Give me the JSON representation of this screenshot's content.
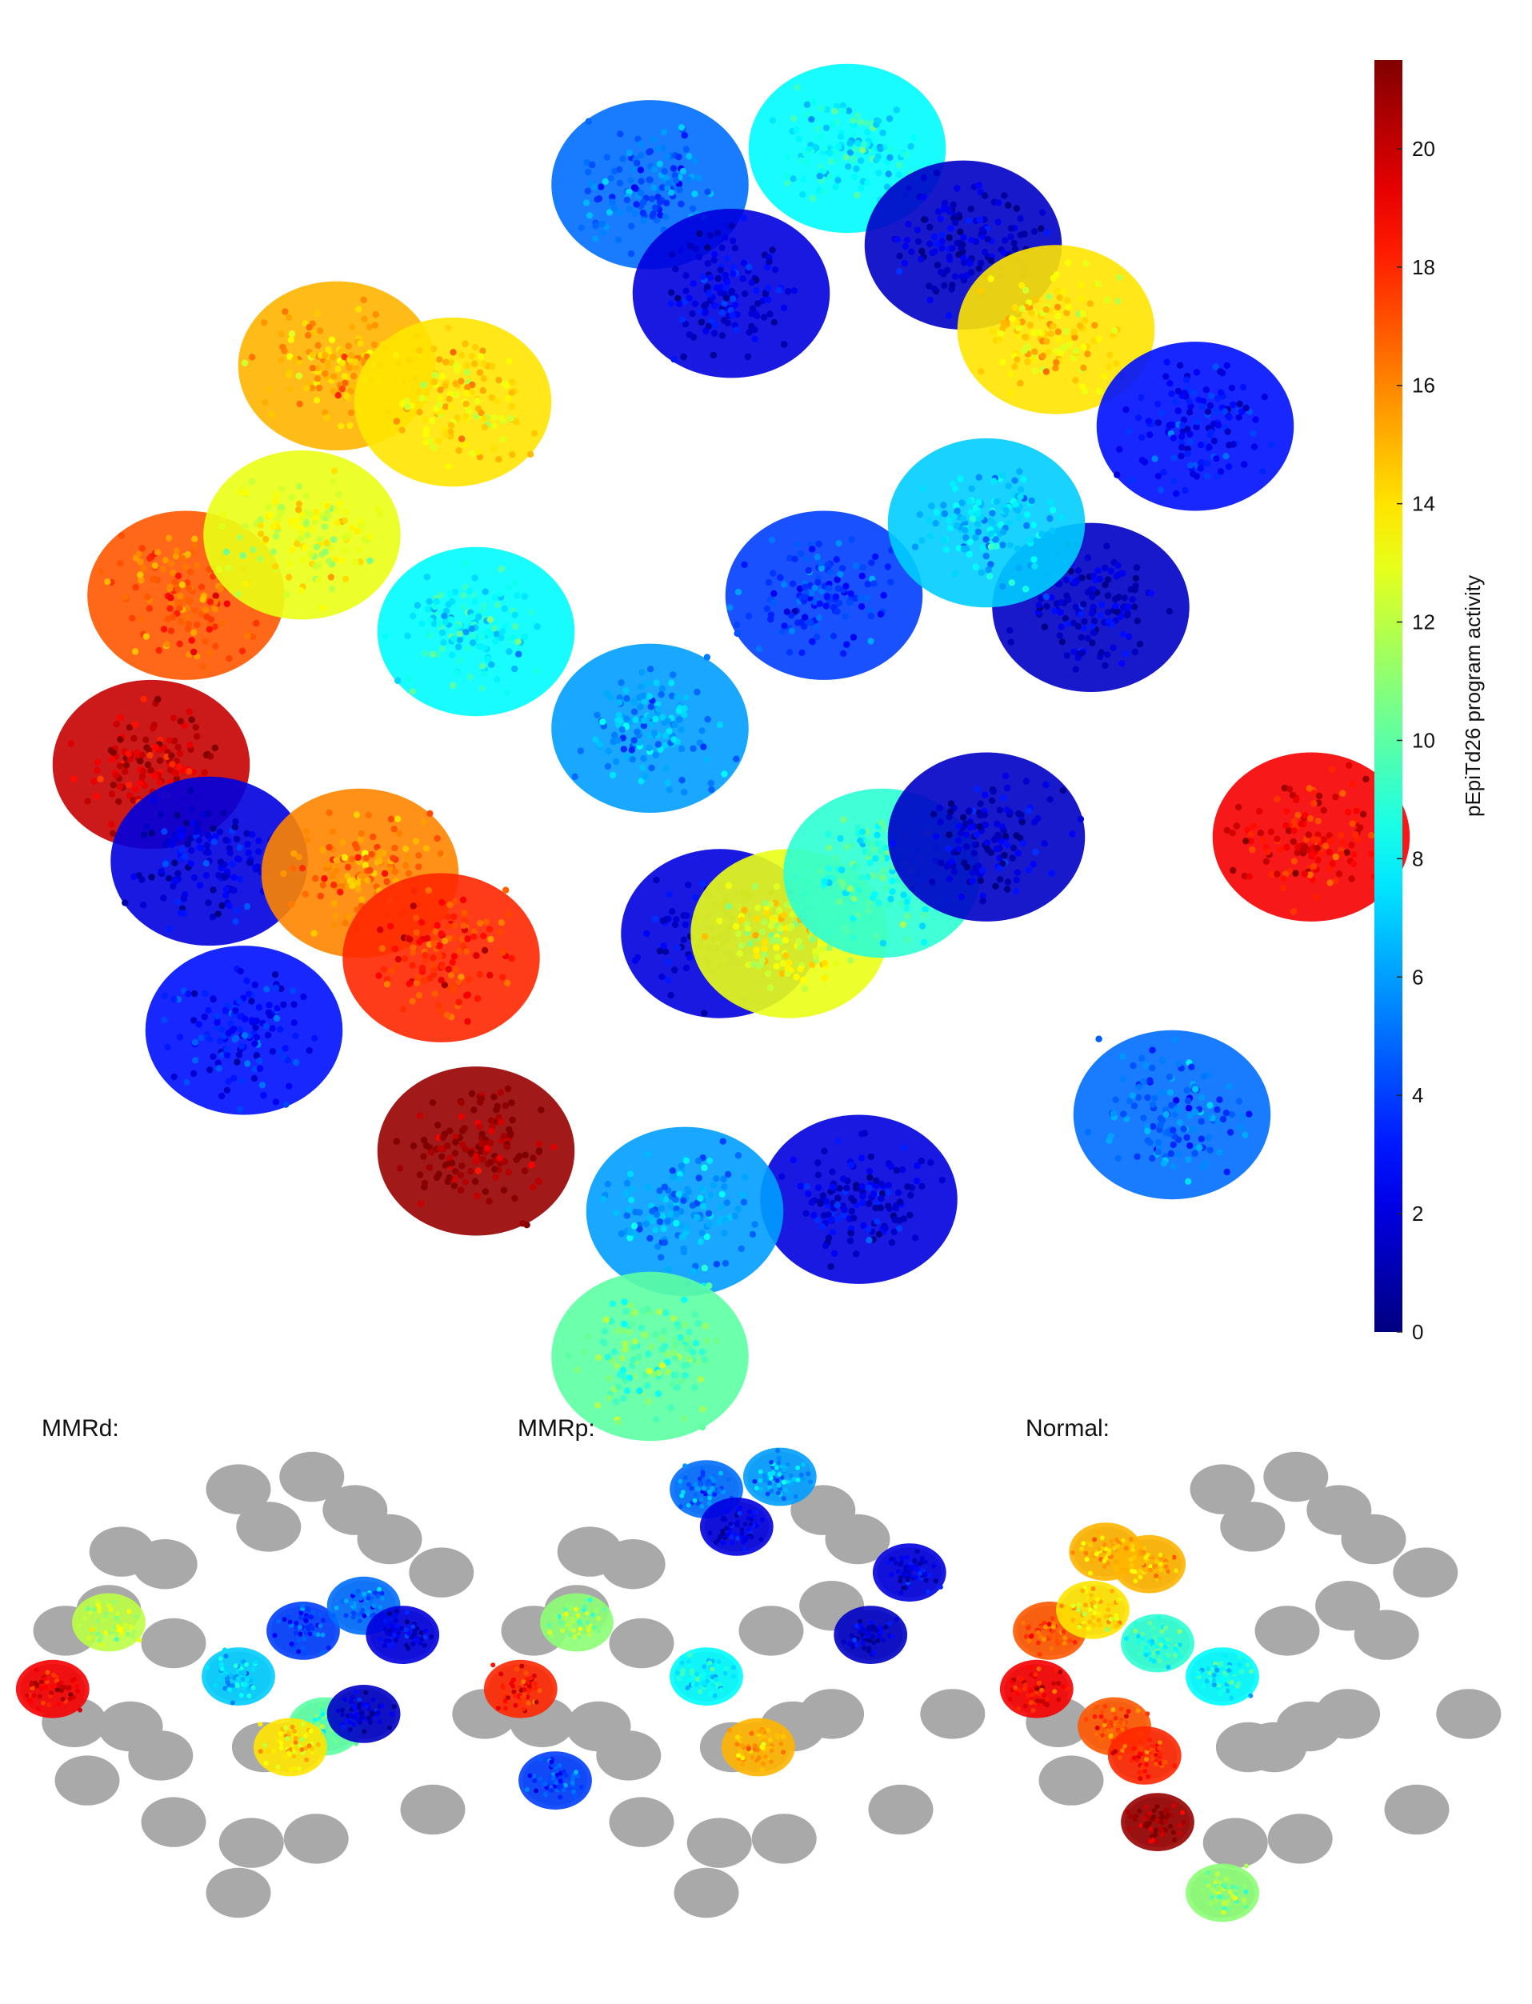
{
  "chart_data": [
    {
      "type": "scatter",
      "panel": "main",
      "label": "",
      "colorbar": {
        "label": "pEpiTd26 program activity",
        "range": [
          0,
          21.5
        ],
        "ticks": [
          0,
          2,
          4,
          6,
          8,
          10,
          12,
          14,
          16,
          18,
          20
        ],
        "tick_labels": [
          "0",
          "2",
          "4",
          "6",
          "8",
          "10",
          "12",
          "14",
          "16",
          "18",
          "20"
        ],
        "colormap": "jet",
        "colors": [
          "#00008f",
          "#0000ff",
          "#0080ff",
          "#00ffff",
          "#80ff80",
          "#ffff00",
          "#ff8000",
          "#ff0000",
          "#800000"
        ]
      },
      "clusters": [
        {
          "x": 0.62,
          "y": 0.95,
          "activity": 8
        },
        {
          "x": 0.45,
          "y": 0.92,
          "activity": 5
        },
        {
          "x": 0.52,
          "y": 0.83,
          "activity": 2
        },
        {
          "x": 0.72,
          "y": 0.87,
          "activity": 1.5
        },
        {
          "x": 0.8,
          "y": 0.8,
          "activity": 14
        },
        {
          "x": 0.92,
          "y": 0.72,
          "activity": 3
        },
        {
          "x": 0.83,
          "y": 0.57,
          "activity": 1.5
        },
        {
          "x": 0.18,
          "y": 0.77,
          "activity": 15
        },
        {
          "x": 0.28,
          "y": 0.74,
          "activity": 14
        },
        {
          "x": 0.05,
          "y": 0.58,
          "activity": 17
        },
        {
          "x": 0.15,
          "y": 0.63,
          "activity": 13
        },
        {
          "x": 0.02,
          "y": 0.44,
          "activity": 20
        },
        {
          "x": 0.3,
          "y": 0.55,
          "activity": 8
        },
        {
          "x": 0.45,
          "y": 0.47,
          "activity": 6
        },
        {
          "x": 0.07,
          "y": 0.36,
          "activity": 2
        },
        {
          "x": 0.2,
          "y": 0.35,
          "activity": 16
        },
        {
          "x": 0.27,
          "y": 0.28,
          "activity": 18
        },
        {
          "x": 0.1,
          "y": 0.22,
          "activity": 3
        },
        {
          "x": 0.3,
          "y": 0.12,
          "activity": 21
        },
        {
          "x": 0.51,
          "y": 0.3,
          "activity": 2
        },
        {
          "x": 0.6,
          "y": 0.58,
          "activity": 4
        },
        {
          "x": 0.57,
          "y": 0.3,
          "activity": 13
        },
        {
          "x": 0.65,
          "y": 0.35,
          "activity": 9
        },
        {
          "x": 0.74,
          "y": 0.38,
          "activity": 1.5
        },
        {
          "x": 0.74,
          "y": 0.64,
          "activity": 7
        },
        {
          "x": 0.9,
          "y": 0.15,
          "activity": 5
        },
        {
          "x": 0.63,
          "y": 0.08,
          "activity": 2
        },
        {
          "x": 0.48,
          "y": 0.07,
          "activity": 6
        },
        {
          "x": 0.45,
          "y": -0.05,
          "activity": 10
        },
        {
          "x": 1.02,
          "y": 0.38,
          "activity": 19
        }
      ]
    },
    {
      "type": "scatter",
      "panel": "subset",
      "label": "MMRd:",
      "clusters": [
        {
          "x": 0.02,
          "y": 0.44,
          "activity": 19
        },
        {
          "x": 0.15,
          "y": 0.6,
          "activity": 12
        },
        {
          "x": 0.45,
          "y": 0.47,
          "activity": 7
        },
        {
          "x": 0.65,
          "y": 0.35,
          "activity": 10
        },
        {
          "x": 0.6,
          "y": 0.58,
          "activity": 4
        },
        {
          "x": 0.74,
          "y": 0.64,
          "activity": 5
        },
        {
          "x": 0.83,
          "y": 0.57,
          "activity": 2
        },
        {
          "x": 0.57,
          "y": 0.3,
          "activity": 14
        },
        {
          "x": 0.74,
          "y": 0.38,
          "activity": 1.5
        }
      ]
    },
    {
      "type": "scatter",
      "panel": "subset",
      "label": "MMRp:",
      "clusters": [
        {
          "x": 0.02,
          "y": 0.44,
          "activity": 18
        },
        {
          "x": 0.15,
          "y": 0.6,
          "activity": 11
        },
        {
          "x": 0.45,
          "y": 0.92,
          "activity": 5
        },
        {
          "x": 0.62,
          "y": 0.95,
          "activity": 6
        },
        {
          "x": 0.52,
          "y": 0.83,
          "activity": 2
        },
        {
          "x": 0.83,
          "y": 0.57,
          "activity": 1.5
        },
        {
          "x": 0.92,
          "y": 0.72,
          "activity": 2
        },
        {
          "x": 0.1,
          "y": 0.22,
          "activity": 4
        },
        {
          "x": 0.45,
          "y": 0.47,
          "activity": 8
        },
        {
          "x": 0.57,
          "y": 0.3,
          "activity": 15
        }
      ]
    },
    {
      "type": "scatter",
      "panel": "subset",
      "label": "Normal:",
      "clusters": [
        {
          "x": 0.18,
          "y": 0.77,
          "activity": 15
        },
        {
          "x": 0.28,
          "y": 0.74,
          "activity": 15
        },
        {
          "x": 0.05,
          "y": 0.58,
          "activity": 17
        },
        {
          "x": 0.15,
          "y": 0.63,
          "activity": 14
        },
        {
          "x": 0.02,
          "y": 0.44,
          "activity": 19
        },
        {
          "x": 0.3,
          "y": 0.55,
          "activity": 9
        },
        {
          "x": 0.45,
          "y": 0.47,
          "activity": 8
        },
        {
          "x": 0.2,
          "y": 0.35,
          "activity": 17
        },
        {
          "x": 0.27,
          "y": 0.28,
          "activity": 18
        },
        {
          "x": 0.3,
          "y": 0.12,
          "activity": 21
        },
        {
          "x": 0.45,
          "y": -0.05,
          "activity": 11
        }
      ]
    }
  ]
}
